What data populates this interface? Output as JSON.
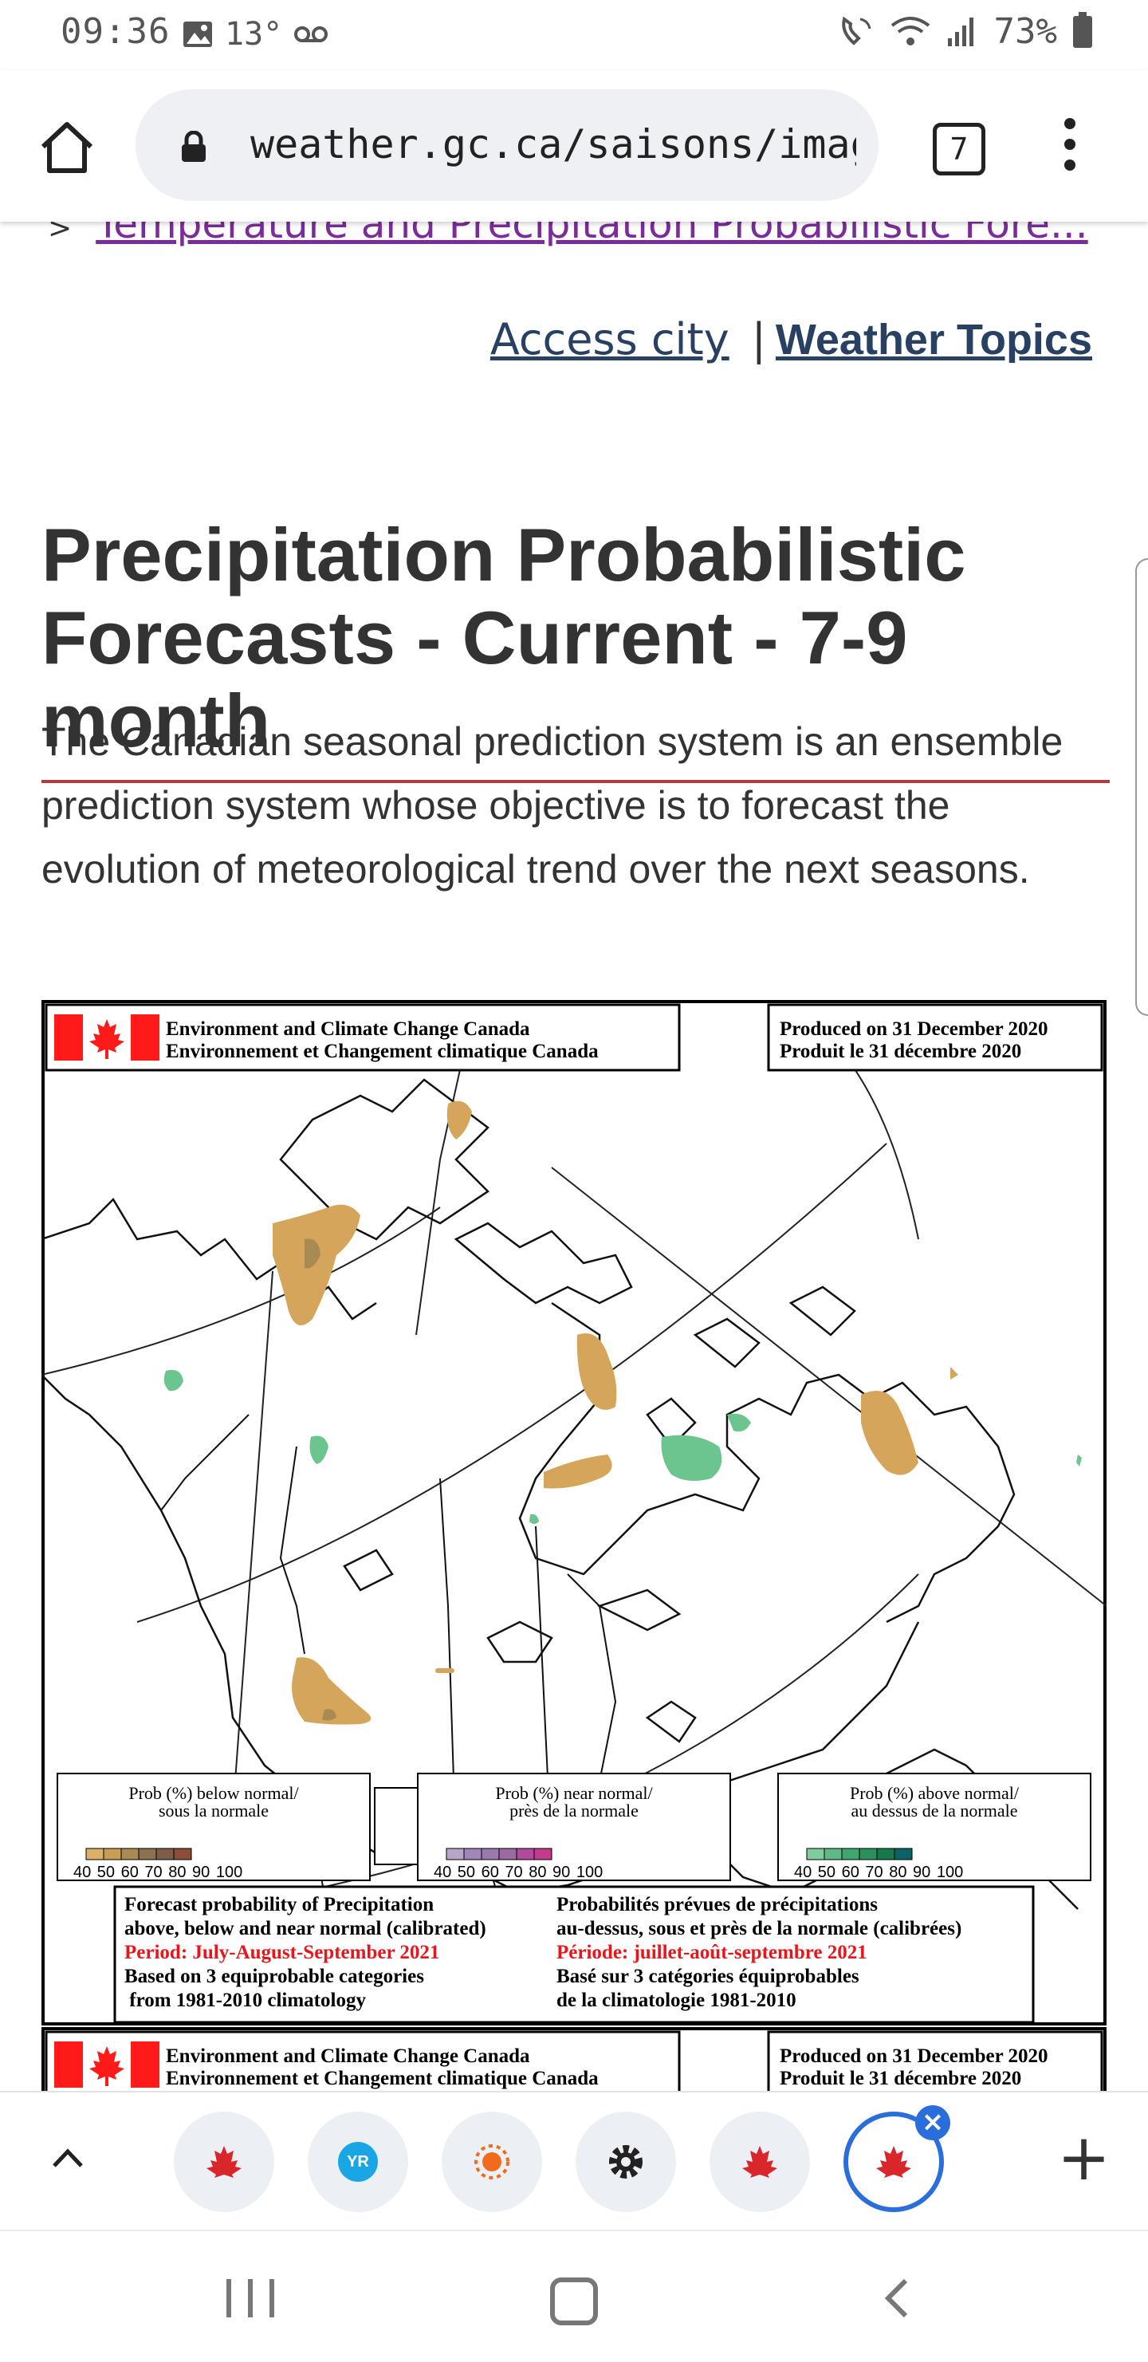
{
  "status_bar": {
    "time": "09:36",
    "temperature": "13°",
    "battery": "73%",
    "icons": [
      "image-icon",
      "voicemail-icon",
      "wifi-calling-icon",
      "wifi-icon",
      "signal-icon",
      "battery-icon"
    ]
  },
  "browser": {
    "url": "weather.gc.ca/saisons/image_e.h",
    "tab_count": "7"
  },
  "page": {
    "breadcrumb_arrow": ">",
    "breadcrumb_link": "Temperature and Precipitation Probabilistic Fore...",
    "links": {
      "access_city": "Access city",
      "separator": "|",
      "weather_topics": "Weather Topics"
    },
    "title": "Precipitation Probabilistic Forecasts - Current - 7-9 month",
    "intro": "The Canadian seasonal prediction system is an ensemble prediction system whose objective is to forecast the evolution of meteorological trend over the next seasons."
  },
  "map": {
    "header_en": "Environment and Climate Change Canada",
    "header_fr": "Environnement et Changement climatique Canada",
    "produced_en": "Produced on 31 December 2020",
    "produced_fr": "Produit le 31 décembre 2020",
    "legend": [
      {
        "title1": "Prob (%) below normal/",
        "title2": "sous la normale",
        "ticks": "40 50 60 70 80 90 100",
        "colors": [
          "#ddb06a",
          "#c79d57",
          "#a98a52",
          "#8c7150",
          "#7d5d4a",
          "#8e4c3b"
        ]
      },
      {
        "title1": "Prob (%) near normal/",
        "title2": "près de la normale",
        "ticks": "40 50 60 70 80 90 100",
        "colors": [
          "#b7a6c8",
          "#a187b8",
          "#9a7aac",
          "#9a6aa0",
          "#b04a9a",
          "#c53b8c"
        ]
      },
      {
        "title1": "Prob (%) above normal/",
        "title2": "au dessus de la normale",
        "ticks": "40 50 60 70 80 90 100",
        "colors": [
          "#7fcc9c",
          "#5fb987",
          "#3ea66f",
          "#2a8f5a",
          "#16794a",
          "#0d6266"
        ]
      }
    ],
    "info_en": [
      "Forecast probability of Precipitation",
      "above, below and near normal (calibrated)",
      "Period: July-August-September 2021",
      "Based on 3 equiprobable categories",
      " from 1981-2010 climatology"
    ],
    "info_fr": [
      "Probabilités prévues de précipitations",
      "au-dessus, sous et près de la normale (calibrées)",
      "Période: juillet-août-septembre 2021",
      "Basé sur 3 catégories équiprobables",
      "de la climatologie 1981-2010"
    ],
    "colors": {
      "below": "#d4a55a",
      "above": "#6cc48f",
      "period": "#e8161b",
      "flag": "#ff1a1a"
    }
  },
  "tabbar": {
    "tabs": [
      "maple-leaf-icon",
      "yr-icon",
      "sun-icon",
      "gear-icon",
      "maple-leaf-icon",
      "maple-leaf-icon"
    ],
    "tab_labels": {
      "yr": "YR"
    },
    "plus": "+",
    "close": "×"
  }
}
